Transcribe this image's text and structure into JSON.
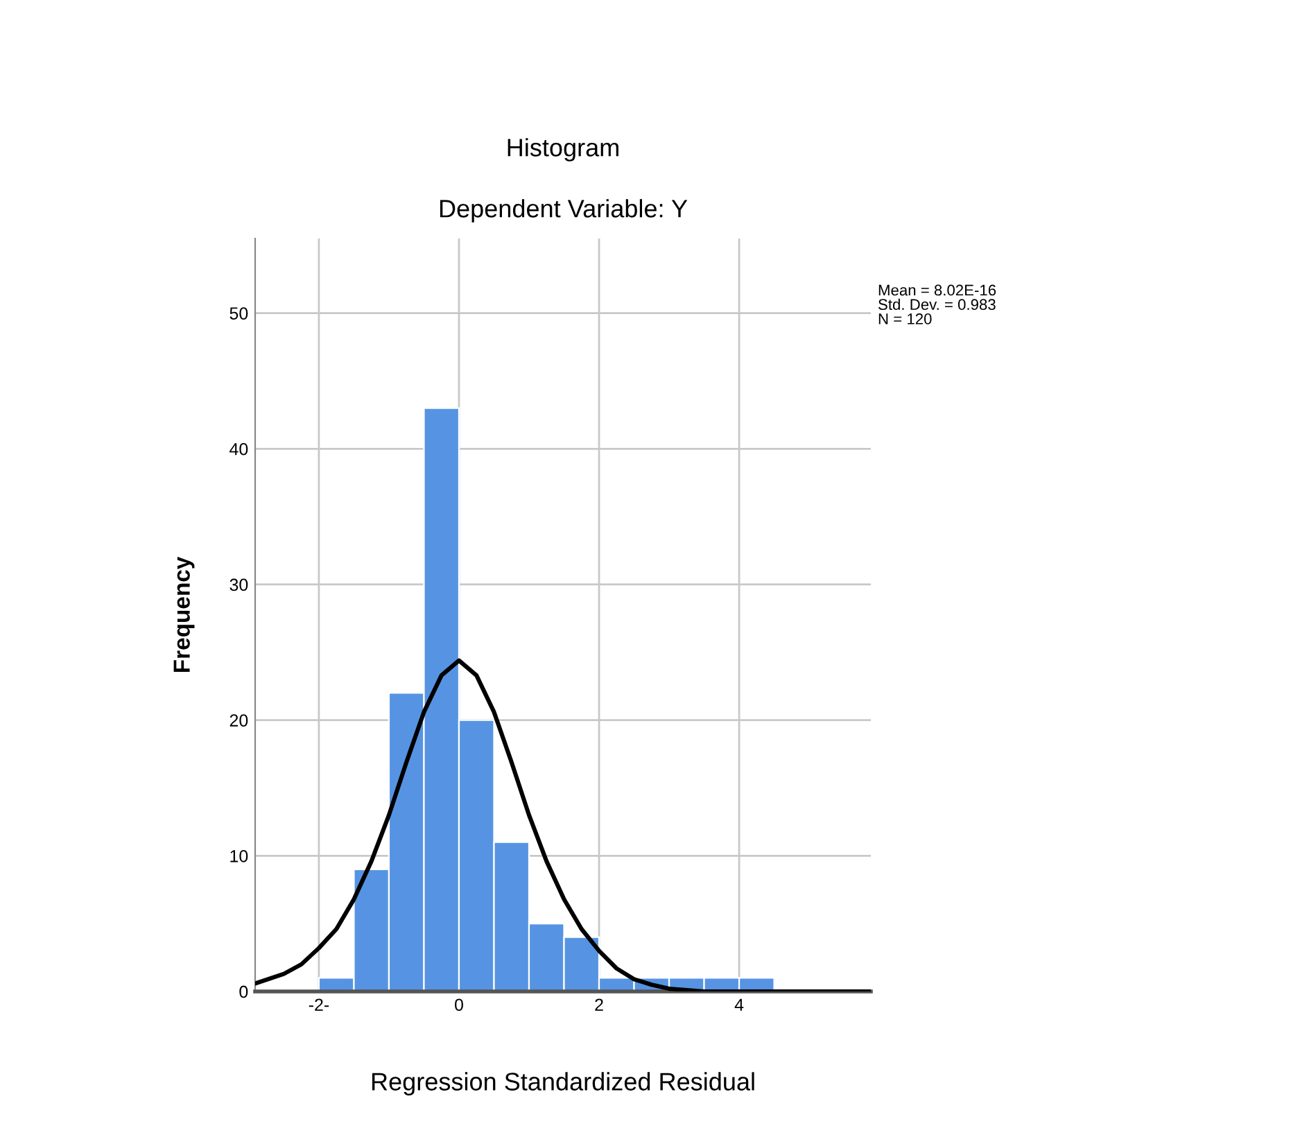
{
  "chart_data": {
    "type": "histogram",
    "title": "Histogram",
    "subtitle": "Dependent Variable: Y",
    "xlabel": "Regression Standardized Residual",
    "ylabel": "Frequency",
    "bins": [
      -2,
      -1.5,
      -1,
      -0.5,
      0,
      0.5,
      1,
      1.5,
      2,
      2.5,
      3,
      3.5,
      4,
      4.5
    ],
    "values": [
      1,
      9,
      22,
      43,
      20,
      11,
      5,
      4,
      1,
      1,
      1,
      1,
      1
    ],
    "color": "#5694e3",
    "series": [
      {
        "type": "line",
        "color": "#000000",
        "x": [
          -2.9,
          -2.5,
          -2.25,
          -2,
          -1.75,
          -1.5,
          -1.25,
          -1,
          -0.75,
          -0.5,
          -0.25,
          0,
          0.25,
          0.5,
          0.75,
          1,
          1.25,
          1.5,
          1.75,
          2,
          2.25,
          2.5,
          2.75,
          3,
          3.5,
          4,
          5.88
        ],
        "values": [
          0.6,
          1.3,
          2.0,
          3.2,
          4.6,
          6.8,
          9.6,
          13.0,
          16.9,
          20.6,
          23.3,
          24.4,
          23.3,
          20.6,
          16.9,
          13.0,
          9.6,
          6.8,
          4.6,
          3.0,
          1.7,
          0.9,
          0.5,
          0.2,
          0,
          0,
          0
        ]
      }
    ],
    "xlim": [
      -2.91,
      5.88
    ],
    "ylim": [
      0,
      55.5
    ],
    "xticks": [
      {
        "value": -2,
        "label": "-2-"
      },
      0,
      2,
      4
    ],
    "yticks": [
      0,
      10,
      20,
      30,
      40,
      50
    ],
    "grid": true,
    "annotations": [
      "Mean = 8.02E-16\nStd. Dev. = 0.983\nN = 120"
    ]
  }
}
